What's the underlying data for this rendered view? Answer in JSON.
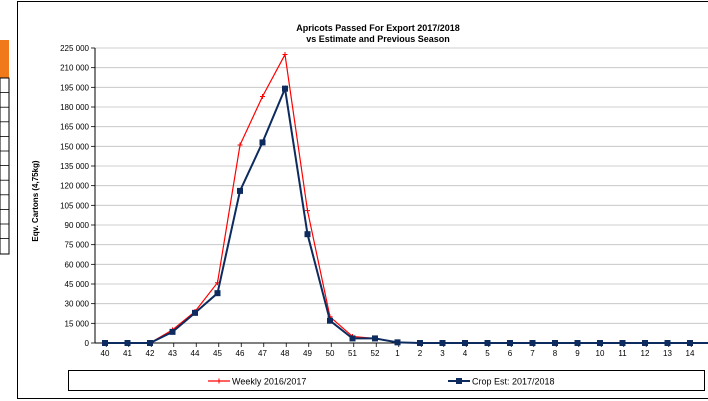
{
  "chart_data": {
    "type": "line",
    "title": "Apricots Passed For Export 2017/2018",
    "subtitle": "vs Estimate and Previous Season",
    "ylabel": "Eqv. Cartons (4,75kg)",
    "ylim": [
      0,
      225000
    ],
    "ytick_step": 15000,
    "ytick_labels": [
      "0",
      "15 000",
      "30 000",
      "45 000",
      "60 000",
      "75 000",
      "90 000",
      "105 000",
      "120 000",
      "135 000",
      "150 000",
      "165 000",
      "180 000",
      "195 000",
      "210 000",
      "225 000"
    ],
    "categories": [
      "40",
      "41",
      "42",
      "43",
      "44",
      "45",
      "46",
      "47",
      "48",
      "49",
      "50",
      "51",
      "52",
      "1",
      "2",
      "3",
      "4",
      "5",
      "6",
      "7",
      "8",
      "9",
      "10",
      "11",
      "12",
      "13",
      "14",
      "1"
    ],
    "grid": "horizontal",
    "legend_position": "bottom",
    "series": [
      {
        "name": "Weekly 2016/2017",
        "color": "#ff0000",
        "marker": "plus",
        "values": [
          0,
          0,
          0,
          10000,
          24000,
          46000,
          151000,
          188000,
          220000,
          101000,
          20000,
          5000,
          3500,
          500,
          0,
          0,
          0,
          0,
          0,
          0,
          0,
          0,
          0,
          0,
          0,
          0,
          0,
          0
        ]
      },
      {
        "name": "Crop Est: 2017/2018",
        "color": "#0d2b5e",
        "marker": "square",
        "values": [
          0,
          0,
          0,
          8500,
          23000,
          38000,
          116000,
          153000,
          194000,
          83000,
          17000,
          3500,
          3500,
          500,
          0,
          0,
          0,
          0,
          0,
          0,
          0,
          0,
          0,
          0,
          0,
          0,
          0,
          0
        ]
      }
    ]
  },
  "side_panel": {
    "accent": "#f07a1a"
  }
}
